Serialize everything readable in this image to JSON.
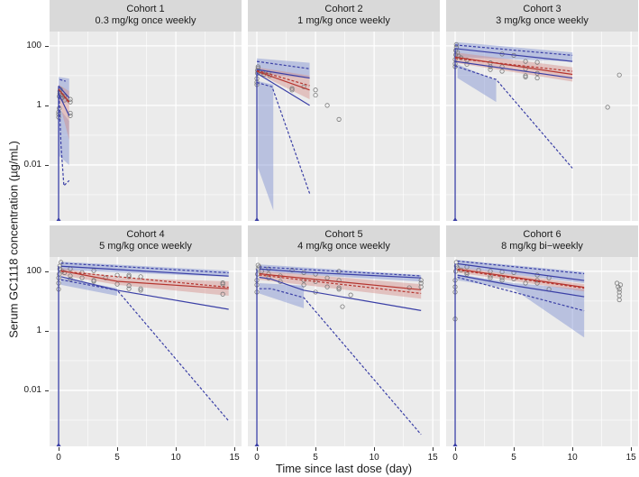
{
  "chart_data": {
    "type": "line",
    "xlabel": "Time since last dose (day)",
    "ylabel": "Serum GC1118 concentration (µg/mL)",
    "x_ticks": [
      "0",
      "5",
      "10",
      "15"
    ],
    "y_ticks": [
      "100",
      "1",
      "0.01"
    ],
    "y_scale": "log10",
    "xlim": [
      -0.77,
      15.6
    ],
    "ylim": [
      0.000132,
      302
    ],
    "colors": {
      "blue": "#3a3fa6",
      "red": "#b5352f",
      "blue_shade": "#7d8fd0",
      "red_shade": "#d58f8a",
      "point": "#7a7a7a",
      "panel_bg": "#ebebeb",
      "strip_bg": "#d9d9d9"
    },
    "panels": [
      {
        "title": "Cohort 1",
        "subtitle": "0.3 mg/kg once weekly",
        "points": [
          [
            0,
            0.4
          ],
          [
            0,
            0.5
          ],
          [
            0,
            0.6
          ],
          [
            0.05,
            0.8
          ],
          [
            0.05,
            2
          ],
          [
            0.1,
            2.5
          ],
          [
            0.1,
            3
          ],
          [
            0.15,
            3.5
          ],
          [
            0.3,
            2.2
          ],
          [
            0.3,
            1.8
          ],
          [
            0.5,
            2
          ],
          [
            0.5,
            1.5
          ],
          [
            1,
            1.6
          ],
          [
            1,
            1.3
          ],
          [
            1,
            0.55
          ],
          [
            1,
            0.45
          ]
        ],
        "shade_p95": [
          [
            0,
            1.5,
            9
          ],
          [
            0.9,
            1.2,
            8
          ]
        ],
        "shade_median": [
          [
            0,
            1.5,
            5
          ],
          [
            0.9,
            0.07,
            3
          ]
        ],
        "shade_p5": [
          [
            0.05,
            0.02,
            0.8
          ],
          [
            0.9,
            0.01,
            0.3
          ]
        ],
        "obs_p95": [
          [
            0,
            4.5
          ],
          [
            0.9,
            1.8
          ]
        ],
        "obs_median": [
          [
            0,
            3.5
          ],
          [
            0.9,
            1.3
          ]
        ],
        "obs_p5": [
          [
            0,
            2.5
          ],
          [
            0.9,
            0.45
          ]
        ],
        "sim_p95": [
          [
            0.1,
            7.4
          ],
          [
            0.6,
            6.5
          ]
        ],
        "sim_median": [
          [
            0,
            3.5
          ],
          [
            0.9,
            1.2
          ]
        ],
        "sim_p5": [
          [
            0.05,
            2
          ],
          [
            0.2,
            0.05
          ],
          [
            0.45,
            0.002
          ],
          [
            0.9,
            0.003
          ]
        ]
      },
      {
        "title": "Cohort 2",
        "subtitle": "1 mg/kg once weekly",
        "points": [
          [
            0,
            5
          ],
          [
            0,
            6
          ],
          [
            0,
            8
          ],
          [
            0.05,
            12
          ],
          [
            0.05,
            15
          ],
          [
            0.1,
            18
          ],
          [
            0.1,
            20
          ],
          [
            0.2,
            14
          ],
          [
            0.5,
            13
          ],
          [
            0.6,
            11
          ],
          [
            1,
            12
          ],
          [
            1.1,
            10
          ],
          [
            3,
            3.7
          ],
          [
            3,
            3.3
          ],
          [
            4,
            4.2
          ],
          [
            5,
            3.3
          ],
          [
            5,
            2.2
          ],
          [
            6,
            1.0
          ],
          [
            7,
            0.34
          ]
        ],
        "shade_p95": [
          [
            0,
            12,
            38
          ],
          [
            4.5,
            8,
            27
          ]
        ],
        "shade_median": [
          [
            0,
            12,
            19
          ],
          [
            4.5,
            1.6,
            10
          ]
        ],
        "shade_p5": [
          [
            0.1,
            0.008,
            6.5
          ],
          [
            1.4,
            0.0003,
            5
          ]
        ],
        "obs_p95": [
          [
            0,
            16
          ],
          [
            4.5,
            8.3
          ]
        ],
        "obs_median": [
          [
            0,
            14
          ],
          [
            4.5,
            3.3
          ]
        ],
        "obs_p5": [
          [
            0,
            12
          ],
          [
            4.5,
            1.0
          ]
        ],
        "sim_p95": [
          [
            0,
            30
          ],
          [
            4.5,
            17
          ]
        ],
        "sim_median": [
          [
            0,
            15
          ],
          [
            4.5,
            4.6
          ]
        ],
        "sim_p5": [
          [
            0,
            5.9
          ],
          [
            1.3,
            4.2
          ],
          [
            4.5,
            0.0011
          ]
        ]
      },
      {
        "title": "Cohort 3",
        "subtitle": "3 mg/kg once weekly",
        "points": [
          [
            0,
            20
          ],
          [
            0,
            25
          ],
          [
            0,
            35
          ],
          [
            0.05,
            50
          ],
          [
            0.05,
            70
          ],
          [
            0.1,
            90
          ],
          [
            0.1,
            110
          ],
          [
            0.2,
            60
          ],
          [
            0.3,
            45
          ],
          [
            0.5,
            40
          ],
          [
            1,
            33
          ],
          [
            1,
            24
          ],
          [
            3,
            27
          ],
          [
            3,
            20
          ],
          [
            3,
            16
          ],
          [
            4,
            53
          ],
          [
            4,
            20
          ],
          [
            4,
            14
          ],
          [
            5,
            48
          ],
          [
            6,
            30
          ],
          [
            6,
            17
          ],
          [
            6,
            10
          ],
          [
            6,
            9
          ],
          [
            7,
            28
          ],
          [
            7,
            12
          ],
          [
            7,
            8.3
          ],
          [
            13,
            0.87
          ],
          [
            14,
            10.5
          ]
        ],
        "shade_p95": [
          [
            0,
            42,
            135
          ],
          [
            10,
            30,
            60
          ]
        ],
        "shade_median": [
          [
            0,
            27,
            60
          ],
          [
            10,
            6.3,
            19
          ]
        ],
        "shade_p5": [
          [
            0.2,
            8.3,
            24
          ],
          [
            3.5,
            1.3,
            7
          ]
        ],
        "obs_p95": [
          [
            0,
            81
          ],
          [
            10,
            30
          ]
        ],
        "obs_median": [
          [
            0,
            42
          ],
          [
            10,
            11
          ]
        ],
        "obs_p5": [
          [
            0,
            30
          ],
          [
            10,
            8.3
          ]
        ],
        "sim_p95": [
          [
            0,
            107
          ],
          [
            10,
            48
          ]
        ],
        "sim_median": [
          [
            0,
            38
          ],
          [
            10,
            14
          ]
        ],
        "sim_p5": [
          [
            0,
            21
          ],
          [
            3.5,
            7.4
          ],
          [
            10,
            0.0078
          ]
        ]
      },
      {
        "title": "Cohort 4",
        "subtitle": "5 mg/kg once weekly",
        "points": [
          [
            0,
            25
          ],
          [
            0,
            40
          ],
          [
            0,
            60
          ],
          [
            0.05,
            80
          ],
          [
            0.1,
            120
          ],
          [
            0.1,
            150
          ],
          [
            0.2,
            200
          ],
          [
            0.3,
            100
          ],
          [
            0.5,
            90
          ],
          [
            1,
            120
          ],
          [
            1,
            70
          ],
          [
            1,
            55
          ],
          [
            2,
            90
          ],
          [
            2,
            60
          ],
          [
            3,
            105
          ],
          [
            3,
            50
          ],
          [
            3,
            46
          ],
          [
            4,
            60
          ],
          [
            5,
            74
          ],
          [
            5,
            37
          ],
          [
            6,
            74
          ],
          [
            6,
            66
          ],
          [
            6,
            33
          ],
          [
            6,
            26
          ],
          [
            7,
            66
          ],
          [
            7,
            26
          ],
          [
            7,
            23
          ],
          [
            14,
            41
          ],
          [
            14,
            37
          ],
          [
            14,
            17
          ]
        ],
        "shade_p95": [
          [
            0.2,
            110,
            210
          ],
          [
            14.5,
            65,
            105
          ]
        ],
        "shade_median": [
          [
            0.2,
            74,
            130
          ],
          [
            5,
            35,
            60
          ],
          [
            14.5,
            15,
            46
          ]
        ],
        "shade_p5": [
          [
            0.2,
            35,
            60
          ],
          [
            5,
            15,
            27
          ]
        ],
        "obs_p95": [
          [
            0.2,
            148
          ],
          [
            14.5,
            69
          ]
        ],
        "obs_median": [
          [
            0.2,
            105
          ],
          [
            5,
            46
          ],
          [
            14.5,
            26
          ]
        ],
        "obs_p5": [
          [
            0.2,
            66
          ],
          [
            5,
            23
          ],
          [
            14.5,
            5.3
          ]
        ],
        "sim_p95": [
          [
            0.2,
            188
          ],
          [
            14.5,
            89
          ]
        ],
        "sim_median": [
          [
            0.2,
            100
          ],
          [
            14.5,
            29
          ]
        ],
        "sim_p5": [
          [
            0.2,
            52
          ],
          [
            5,
            23
          ],
          [
            14.5,
            0.00094
          ]
        ]
      },
      {
        "title": "Cohort 5",
        "subtitle": "4 mg/kg once weekly",
        "points": [
          [
            0,
            20
          ],
          [
            0,
            35
          ],
          [
            0,
            50
          ],
          [
            0.05,
            80
          ],
          [
            0.1,
            120
          ],
          [
            0.1,
            160
          ],
          [
            0.2,
            140
          ],
          [
            0.4,
            100
          ],
          [
            1,
            120
          ],
          [
            1,
            80
          ],
          [
            1,
            60
          ],
          [
            2,
            70
          ],
          [
            2,
            45
          ],
          [
            3,
            110
          ],
          [
            4,
            90
          ],
          [
            4,
            50
          ],
          [
            4,
            35
          ],
          [
            5,
            80
          ],
          [
            5,
            45
          ],
          [
            5,
            20
          ],
          [
            6,
            60
          ],
          [
            6,
            30
          ],
          [
            7,
            100
          ],
          [
            7,
            50
          ],
          [
            7,
            28
          ],
          [
            7,
            25
          ],
          [
            7.3,
            6.5
          ],
          [
            8,
            16
          ],
          [
            13,
            28
          ],
          [
            14,
            50
          ],
          [
            14,
            30
          ],
          [
            14,
            40
          ]
        ],
        "shade_p95": [
          [
            0.2,
            95,
            170
          ],
          [
            14,
            45,
            75
          ]
        ],
        "shade_median": [
          [
            0.2,
            52,
            105
          ],
          [
            14,
            12,
            37
          ]
        ],
        "shade_p5": [
          [
            0.2,
            18,
            40
          ],
          [
            4,
            5.7,
            33
          ]
        ],
        "obs_p95": [
          [
            0.2,
            120
          ],
          [
            4,
            93
          ],
          [
            14,
            60
          ]
        ],
        "obs_median": [
          [
            0.2,
            83
          ],
          [
            1.2,
            75
          ],
          [
            14,
            24
          ]
        ],
        "obs_p5": [
          [
            0.2,
            63
          ],
          [
            1.2,
            55
          ],
          [
            4,
            23
          ],
          [
            14,
            4.8
          ]
        ],
        "sim_p95": [
          [
            0.2,
            140
          ],
          [
            14,
            70
          ]
        ],
        "sim_median": [
          [
            0.2,
            75
          ],
          [
            14,
            18
          ]
        ],
        "sim_p5": [
          [
            0.2,
            26
          ],
          [
            1.2,
            26
          ],
          [
            4,
            13
          ],
          [
            14,
            0.00033
          ]
        ]
      },
      {
        "title": "Cohort 6",
        "subtitle": "8 mg/kg bi−weekly",
        "points": [
          [
            0,
            2.5
          ],
          [
            0,
            20
          ],
          [
            0,
            30
          ],
          [
            0,
            50
          ],
          [
            0.05,
            100
          ],
          [
            0.1,
            150
          ],
          [
            0.1,
            200
          ],
          [
            0.2,
            130
          ],
          [
            0.5,
            110
          ],
          [
            1,
            140
          ],
          [
            1,
            90
          ],
          [
            1,
            80
          ],
          [
            2,
            110
          ],
          [
            3,
            100
          ],
          [
            3,
            70
          ],
          [
            3,
            60
          ],
          [
            4,
            95
          ],
          [
            4,
            60
          ],
          [
            4,
            50
          ],
          [
            5,
            90
          ],
          [
            5,
            55
          ],
          [
            6,
            40
          ],
          [
            7,
            75
          ],
          [
            7,
            50
          ],
          [
            7,
            40
          ],
          [
            8,
            60
          ],
          [
            8,
            25
          ],
          [
            13.8,
            40
          ],
          [
            13.9,
            30
          ],
          [
            14,
            25
          ],
          [
            14,
            20
          ],
          [
            14,
            15
          ],
          [
            14.1,
            35
          ],
          [
            14,
            11
          ]
        ],
        "shade_p95": [
          [
            0.2,
            130,
            240
          ],
          [
            11,
            40,
            95
          ]
        ],
        "shade_median": [
          [
            0.2,
            90,
            140
          ],
          [
            11,
            21,
            37
          ]
        ],
        "shade_p5": [
          [
            0.2,
            50,
            80
          ],
          [
            5,
            25,
            40
          ],
          [
            11,
            0.6,
            25
          ]
        ],
        "obs_p95": [
          [
            0.2,
            180
          ],
          [
            11,
            49
          ]
        ],
        "obs_median": [
          [
            0.2,
            118
          ],
          [
            11,
            29
          ]
        ],
        "obs_p5": [
          [
            0.2,
            74
          ],
          [
            5,
            33
          ],
          [
            11,
            14
          ]
        ],
        "sim_p95": [
          [
            0.2,
            220
          ],
          [
            11,
            83
          ]
        ],
        "sim_median": [
          [
            0.2,
            110
          ],
          [
            11,
            27
          ]
        ],
        "sim_p5": [
          [
            0.2,
            63
          ],
          [
            11,
            4.7
          ]
        ]
      }
    ]
  }
}
